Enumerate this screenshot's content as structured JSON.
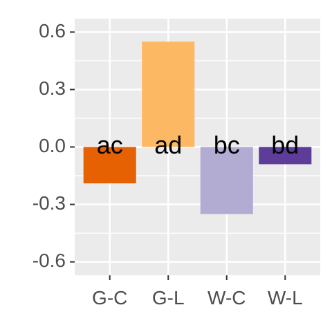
{
  "chart_data": {
    "type": "bar",
    "categories": [
      "G-C",
      "G-L",
      "W-C",
      "W-L"
    ],
    "values": [
      -0.19,
      0.55,
      -0.35,
      -0.09
    ],
    "labels": [
      "ac",
      "ad",
      "bc",
      "bd"
    ],
    "colors": [
      "#E66101",
      "#FDB863",
      "#B2ABD2",
      "#5E3C99"
    ],
    "yticks": [
      -0.6,
      -0.3,
      0.0,
      0.3,
      0.6
    ],
    "ytick_labels": [
      "-0.6",
      "-0.3",
      "0.0",
      "0.3",
      "0.6"
    ],
    "ylim": [
      -0.67,
      0.67
    ],
    "panel_background": "#EBEBEB",
    "grid": true,
    "legend": "none",
    "title": "",
    "xlabel": "",
    "ylabel": ""
  }
}
